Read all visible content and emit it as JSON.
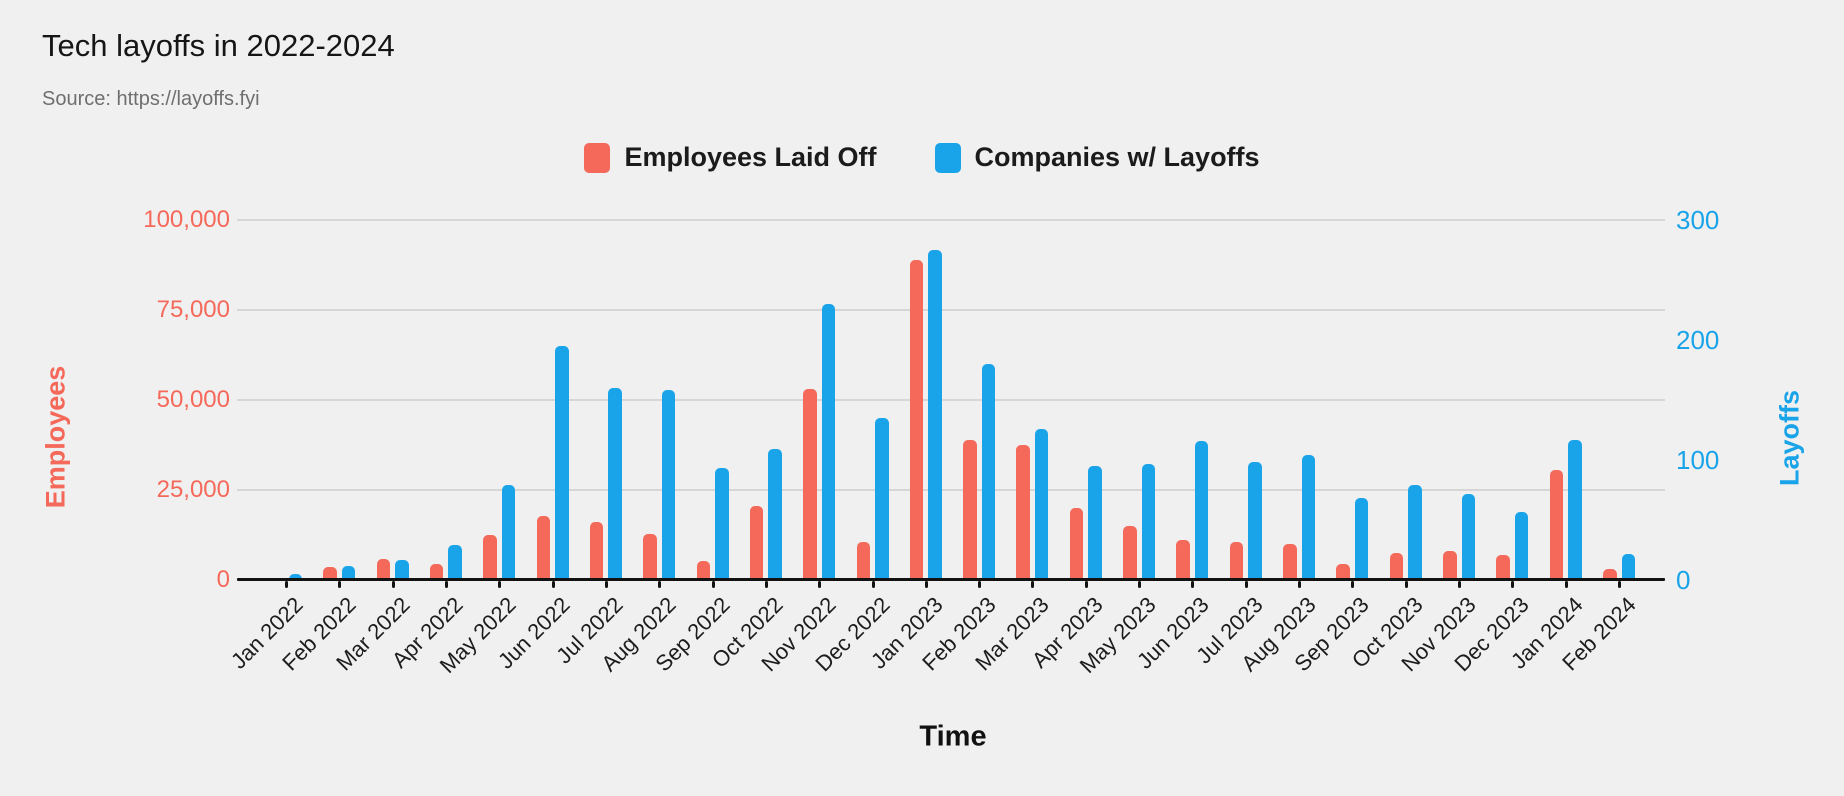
{
  "title": "Tech layoffs in 2022-2024",
  "source": "Source: https://layoffs.fyi",
  "colors": {
    "employees": "#F5695A",
    "companies": "#19A4EA",
    "background": "#F0F0F0",
    "gridline": "#D6D6D6",
    "axis_line": "#121212"
  },
  "legend": [
    {
      "label": "Employees Laid Off",
      "color": "#F5695A"
    },
    {
      "label": "Companies w/ Layoffs",
      "color": "#19A4EA"
    }
  ],
  "chart_data": {
    "type": "bar",
    "title": "Tech layoffs in 2022-2024",
    "xlabel": "Time",
    "grid": true,
    "legend_position": "top",
    "categories": [
      "Jan 2022",
      "Feb 2022",
      "Mar 2022",
      "Apr 2022",
      "May 2022",
      "Jun 2022",
      "Jul 2022",
      "Aug 2022",
      "Sep 2022",
      "Oct 2022",
      "Nov 2022",
      "Dec 2022",
      "Jan 2023",
      "Feb 2023",
      "Mar 2023",
      "Apr 2023",
      "May 2023",
      "Jun 2023",
      "Jul 2023",
      "Aug 2023",
      "Sep 2023",
      "Oct 2023",
      "Nov 2023",
      "Dec 2023",
      "Jan 2024",
      "Feb 2024"
    ],
    "series": [
      {
        "name": "Employees Laid Off",
        "axis": "left",
        "color": "#F5695A",
        "values": [
          600,
          3500,
          5800,
          4400,
          12600,
          17900,
          16100,
          12900,
          5400,
          20500,
          53000,
          10500,
          89000,
          39000,
          37500,
          20000,
          15000,
          11000,
          10500,
          10000,
          4500,
          7600,
          8000,
          7000,
          30500,
          3000
        ]
      },
      {
        "name": "Companies w/ Layoffs",
        "axis": "right",
        "color": "#19A4EA",
        "values": [
          5,
          12,
          17,
          29,
          79,
          195,
          160,
          158,
          93,
          109,
          230,
          135,
          275,
          180,
          126,
          95,
          97,
          116,
          98,
          104,
          68,
          79,
          72,
          57,
          117,
          22
        ]
      }
    ],
    "left_axis": {
      "title": "Employees",
      "color": "#F5695A",
      "max": 100000,
      "ticks": [
        "0",
        "25,000",
        "50,000",
        "75,000",
        "100,000"
      ]
    },
    "right_axis": {
      "title": "Layoffs",
      "color": "#19A4EA",
      "max": 300,
      "ticks": [
        "0",
        "100",
        "200",
        "300"
      ]
    }
  }
}
